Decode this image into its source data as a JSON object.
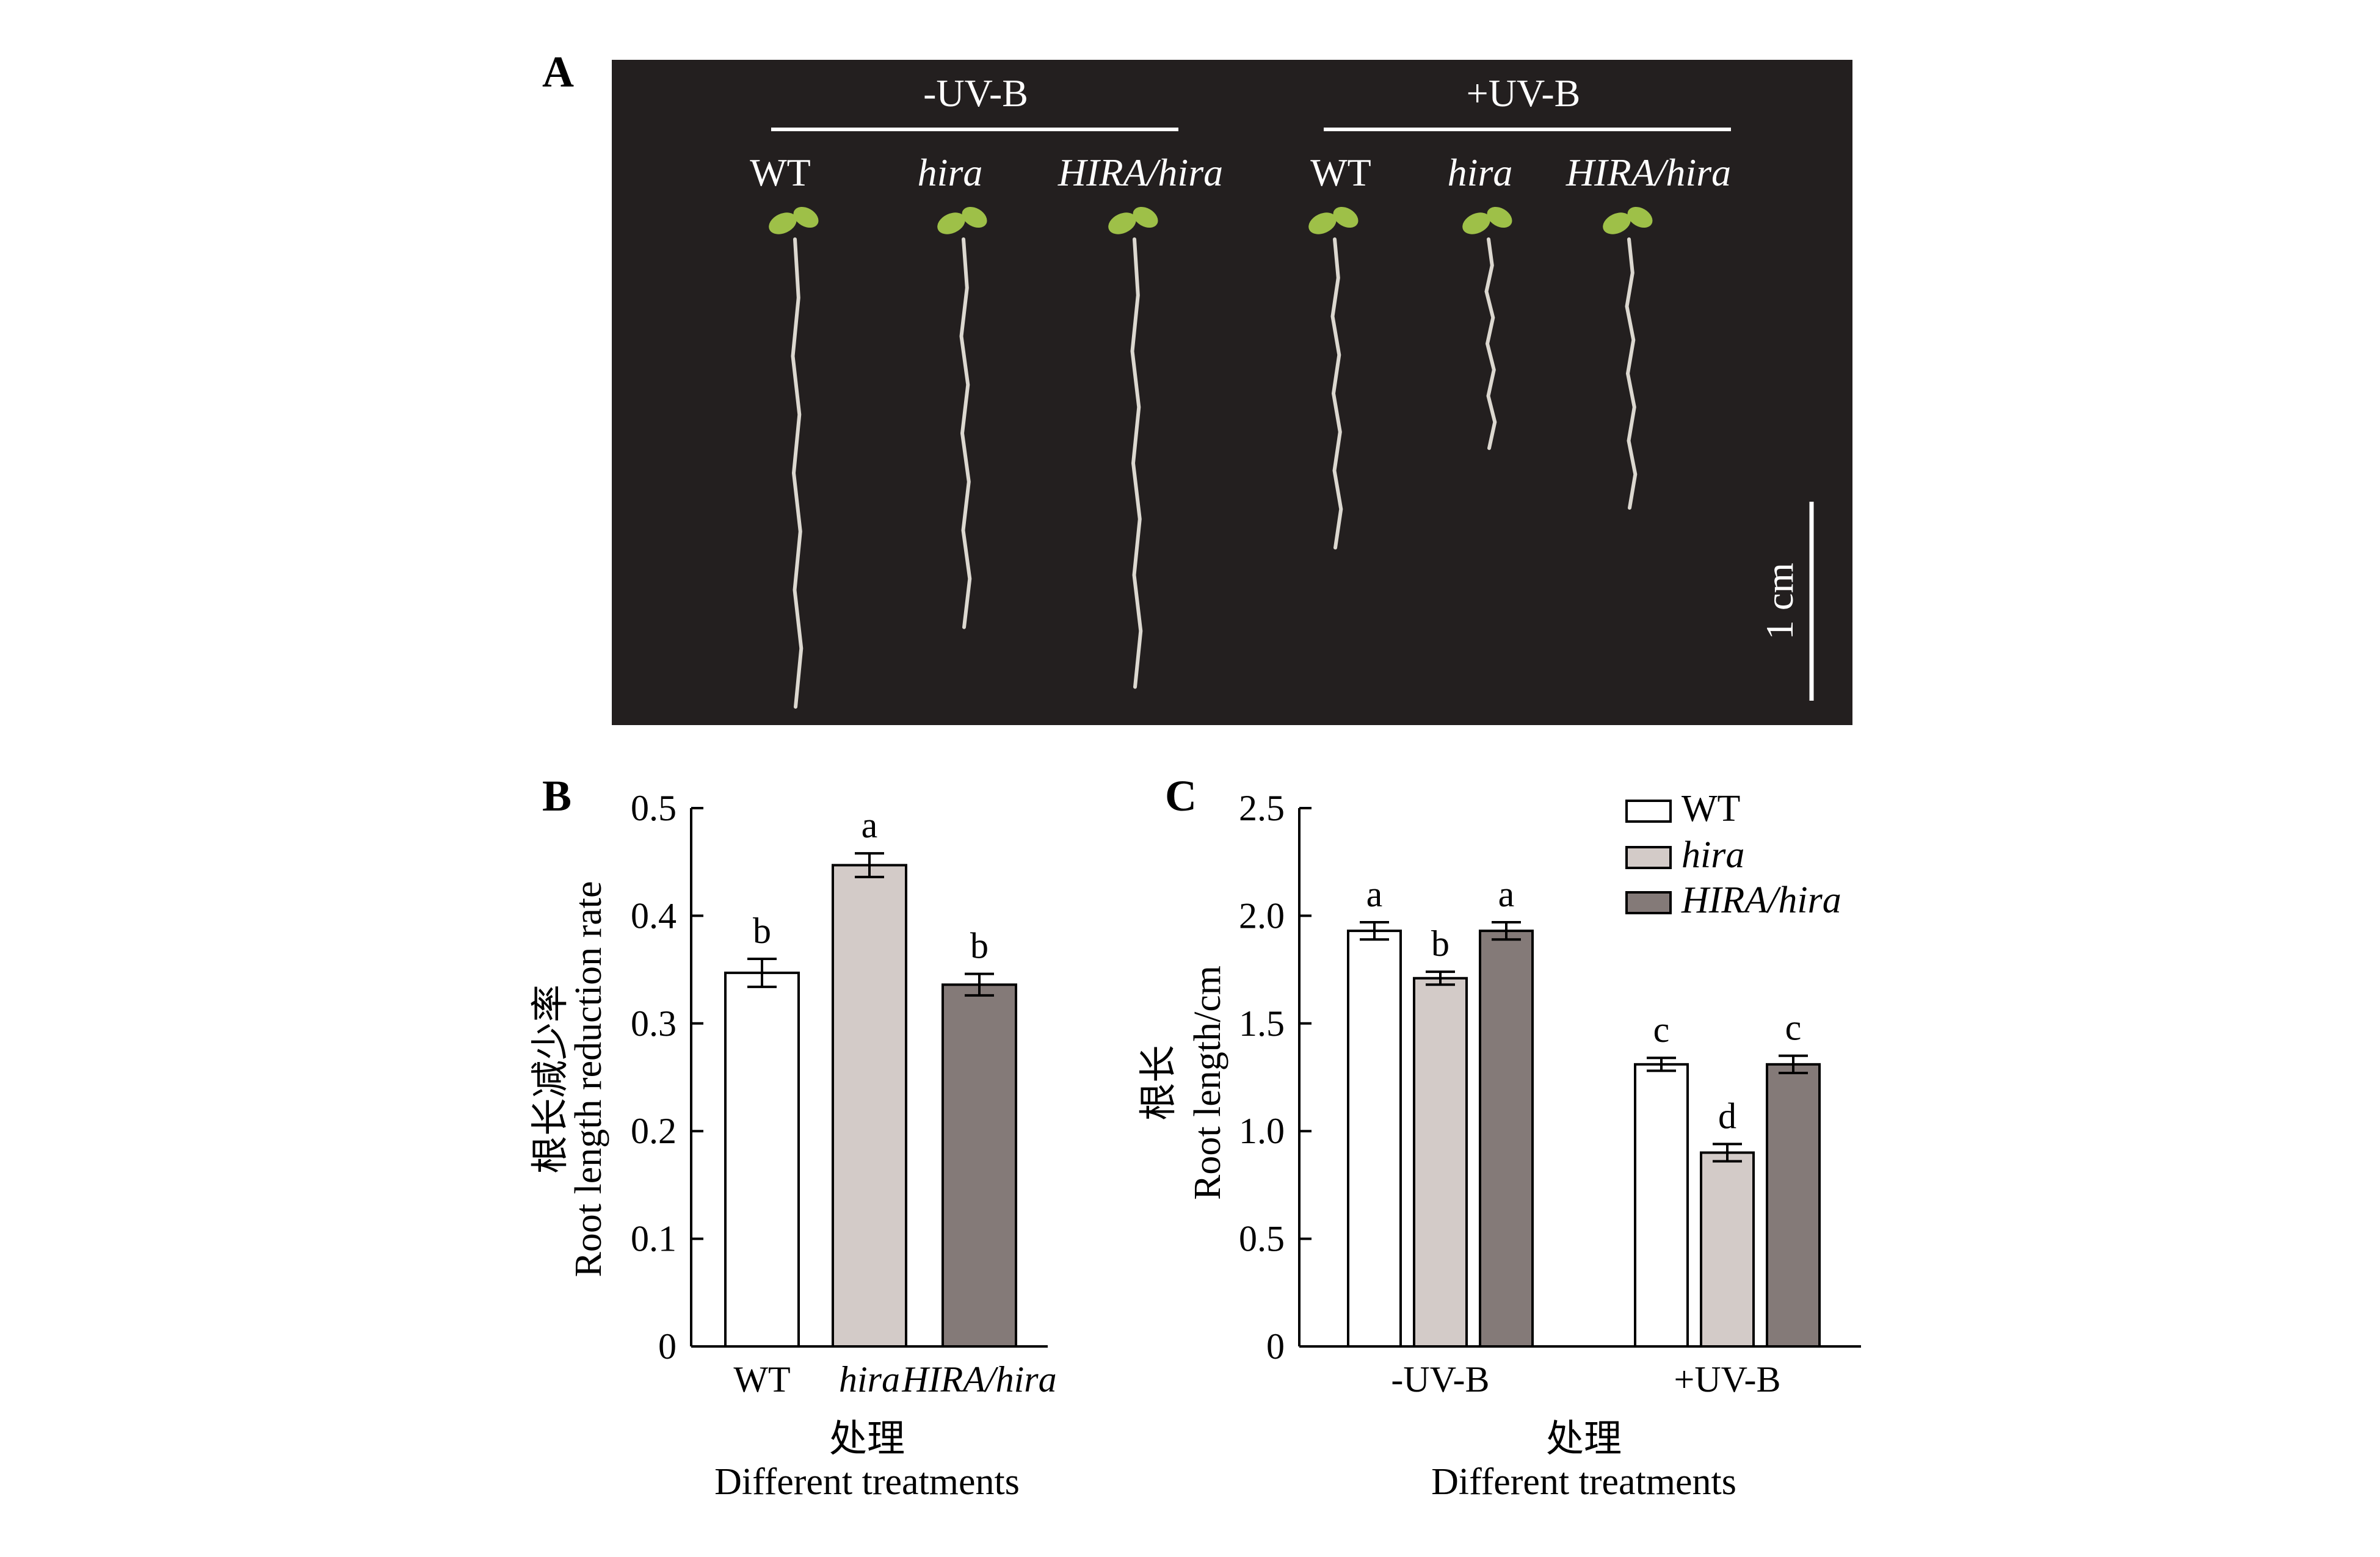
{
  "panel_a": {
    "label": "A",
    "groups": [
      {
        "label": "-UV-B",
        "lines": [
          "WT",
          "hira",
          "HIRA/hira"
        ],
        "root_lengths_cm": [
          2.35,
          1.95,
          2.25
        ]
      },
      {
        "label": "+UV-B",
        "lines": [
          "WT",
          "hira",
          "HIRA/hira"
        ],
        "root_lengths_cm": [
          1.55,
          1.05,
          1.35
        ]
      }
    ],
    "scale_bar_label": "1 cm",
    "colors": {
      "background": "#231f1f",
      "seedling": "#9ec048",
      "root": "#dcd8d0"
    }
  },
  "chart_data": [
    {
      "panel": "B",
      "type": "bar",
      "categories": [
        "WT",
        "hira",
        "HIRA/hira"
      ],
      "values": [
        0.347,
        0.447,
        0.336
      ],
      "errors": [
        0.013,
        0.011,
        0.01
      ],
      "significance": [
        "b",
        "a",
        "b"
      ],
      "colors": [
        "#ffffff",
        "#d3cbc8",
        "#847a78"
      ],
      "ylim": [
        0,
        0.5
      ],
      "yticks": [
        "0",
        "0.1",
        "0.2",
        "0.3",
        "0.4",
        "0.5"
      ],
      "ylabel_zh": "根长减少率",
      "ylabel": "Root length reduction rate",
      "xlabel_zh": "处理",
      "xlabel": "Different treatments"
    },
    {
      "panel": "C",
      "type": "bar",
      "categories": [
        "-UV-B",
        "+UV-B"
      ],
      "series": [
        {
          "name": "WT",
          "values": [
            1.93,
            1.31
          ],
          "errors": [
            0.04,
            0.03
          ],
          "significance": [
            "a",
            "c"
          ],
          "color": "#ffffff"
        },
        {
          "name": "hira",
          "values": [
            1.71,
            0.9
          ],
          "errors": [
            0.03,
            0.04
          ],
          "significance": [
            "b",
            "d"
          ],
          "color": "#d3cbc8"
        },
        {
          "name": "HIRA/hira",
          "values": [
            1.93,
            1.31
          ],
          "errors": [
            0.04,
            0.04
          ],
          "significance": [
            "a",
            "c"
          ],
          "color": "#847a78"
        }
      ],
      "ylim": [
        0,
        2.5
      ],
      "yticks": [
        "0",
        "0.5",
        "1.0",
        "1.5",
        "2.0",
        "2.5"
      ],
      "ylabel_zh": "根长",
      "ylabel": "Root length/cm",
      "xlabel_zh": "处理",
      "xlabel": "Different treatments",
      "legend": "top-right"
    }
  ]
}
